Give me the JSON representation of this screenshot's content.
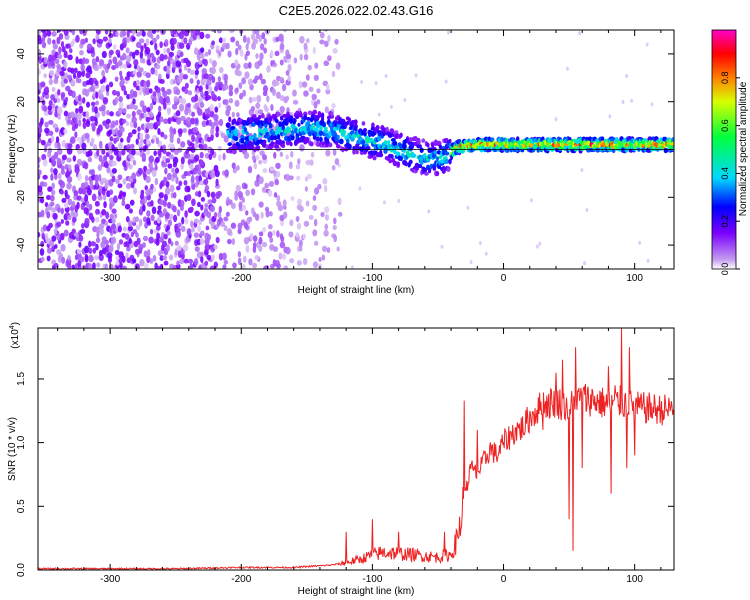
{
  "title": "C2E5.2026.022.02.43.G16",
  "chart_data": [
    {
      "type": "heatmap",
      "name": "spectrogram",
      "xlabel": "Height of straight line (km)",
      "ylabel": "Frequency (Hz)",
      "xlim": [
        -355,
        130
      ],
      "ylim": [
        -50,
        50
      ],
      "x_ticks": [
        -300,
        -200,
        -100,
        0,
        100
      ],
      "x_tick_labels": [
        "-300",
        "-200",
        "-100",
        "0",
        "100"
      ],
      "y_ticks": [
        -40,
        -20,
        0,
        20,
        40
      ],
      "y_tick_labels": [
        "-40",
        "-20",
        "0",
        "20",
        "40"
      ],
      "ridge": {
        "description": "Main spectral ridge (frequency vs height)",
        "x": [
          -205,
          -190,
          -170,
          -150,
          -130,
          -110,
          -90,
          -70,
          -55,
          -45,
          -35,
          -20,
          0,
          40,
          80,
          100,
          130
        ],
        "y": [
          6,
          7,
          8,
          9,
          8,
          5,
          2,
          -2,
          -4,
          -3,
          1,
          2,
          2,
          2,
          2,
          2,
          2
        ]
      },
      "colorbar": {
        "label": "Normalized spectral amplitude",
        "range": [
          0,
          1
        ],
        "ticks": [
          0.0,
          0.2,
          0.4,
          0.6,
          0.8
        ],
        "tick_labels": [
          "0.0",
          "0.2",
          "0.4",
          "0.6",
          "0.8"
        ],
        "colors": [
          "#ffffff",
          "#c49bf0",
          "#7b00ff",
          "#0000ff",
          "#00d8ff",
          "#00ff40",
          "#d8ff00",
          "#ff8000",
          "#ff0000",
          "#ff00c8"
        ]
      }
    },
    {
      "type": "line",
      "name": "snr",
      "xlabel": "Height of straight line (km)",
      "ylabel": "SNR (10 * v/v)",
      "y_multiplier": "(x10",
      "y_multiplier_exp": "4",
      "xlim": [
        -355,
        130
      ],
      "ylim": [
        0,
        1.9
      ],
      "x_ticks": [
        -300,
        -200,
        -100,
        0,
        100
      ],
      "x_tick_labels": [
        "-300",
        "-200",
        "-100",
        "0",
        "100"
      ],
      "y_ticks": [
        0.0,
        0.5,
        1.0,
        1.5
      ],
      "y_tick_labels": [
        "0.0",
        "0.5",
        "1.0",
        "1.5"
      ],
      "color": "#ee2222",
      "series": [
        {
          "name": "SNR",
          "x": [
            -355,
            -300,
            -250,
            -200,
            -160,
            -130,
            -110,
            -100,
            -90,
            -80,
            -70,
            -60,
            -50,
            -40,
            -35,
            -30,
            -25,
            -20,
            -15,
            -10,
            -5,
            0,
            5,
            10,
            15,
            20,
            30,
            40,
            50,
            60,
            70,
            80,
            90,
            100,
            110,
            120,
            130
          ],
          "y": [
            0.01,
            0.01,
            0.01,
            0.02,
            0.02,
            0.04,
            0.08,
            0.12,
            0.14,
            0.13,
            0.12,
            0.11,
            0.1,
            0.12,
            0.25,
            0.55,
            0.8,
            0.75,
            0.85,
            0.95,
            0.9,
            1.0,
            1.05,
            1.1,
            1.12,
            1.2,
            1.3,
            1.32,
            1.28,
            1.35,
            1.33,
            1.3,
            1.32,
            1.28,
            1.27,
            1.26,
            1.26
          ]
        }
      ],
      "spikes": {
        "x": [
          -120,
          -100,
          -80,
          -45,
          -30,
          -28,
          -20,
          20,
          30,
          40,
          45,
          50,
          53,
          55,
          60,
          80,
          82,
          85,
          90,
          94,
          96,
          100
        ],
        "y": [
          0.3,
          0.4,
          0.3,
          0.3,
          1.33,
          0.7,
          1.1,
          1.25,
          1.1,
          1.55,
          1.65,
          0.4,
          0.15,
          1.75,
          0.8,
          1.6,
          0.6,
          1.45,
          1.9,
          0.8,
          1.75,
          0.9
        ]
      }
    }
  ]
}
